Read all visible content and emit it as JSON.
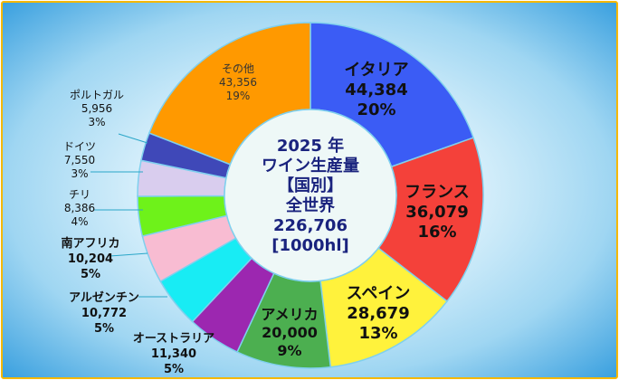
{
  "chart_data": {
    "type": "pie",
    "center_text": [
      "2025 年",
      "ワイン生産量",
      "【国別】",
      "全世界",
      "226,706",
      "[1000hl]"
    ],
    "slices": [
      {
        "label": "イタリア",
        "value_text": "44,384",
        "pct_text": "20%",
        "value": 44384,
        "color": "#3b5cf5"
      },
      {
        "label": "フランス",
        "value_text": "36,079",
        "pct_text": "16%",
        "value": 36079,
        "color": "#f4413a"
      },
      {
        "label": "スペイン",
        "value_text": "28,679",
        "pct_text": "13%",
        "value": 28679,
        "color": "#fff23c"
      },
      {
        "label": "アメリカ",
        "value_text": "20,000",
        "pct_text": "9%",
        "value": 20000,
        "color": "#4caf50"
      },
      {
        "label": "オーストラリア",
        "value_text": "11,340",
        "pct_text": "5%",
        "value": 11340,
        "color": "#9c27b0"
      },
      {
        "label": "アルゼンチン",
        "value_text": "10,772",
        "pct_text": "5%",
        "value": 10772,
        "color": "#18ecf4"
      },
      {
        "label": "南アフリカ",
        "value_text": "10,204",
        "pct_text": "5%",
        "value": 10204,
        "color": "#f8bcd2"
      },
      {
        "label": "チリ",
        "value_text": "8,386",
        "pct_text": "4%",
        "value": 8386,
        "color": "#6ef21a"
      },
      {
        "label": "ドイツ",
        "value_text": "7,550",
        "pct_text": "3%",
        "value": 7550,
        "color": "#d9cdee"
      },
      {
        "label": "ポルトガル",
        "value_text": "5,956",
        "pct_text": "3%",
        "value": 5956,
        "color": "#3f48b8"
      },
      {
        "label": "その他",
        "value_text": "43,356",
        "pct_text": "19%",
        "value": 43356,
        "color": "#ff9900"
      }
    ]
  }
}
